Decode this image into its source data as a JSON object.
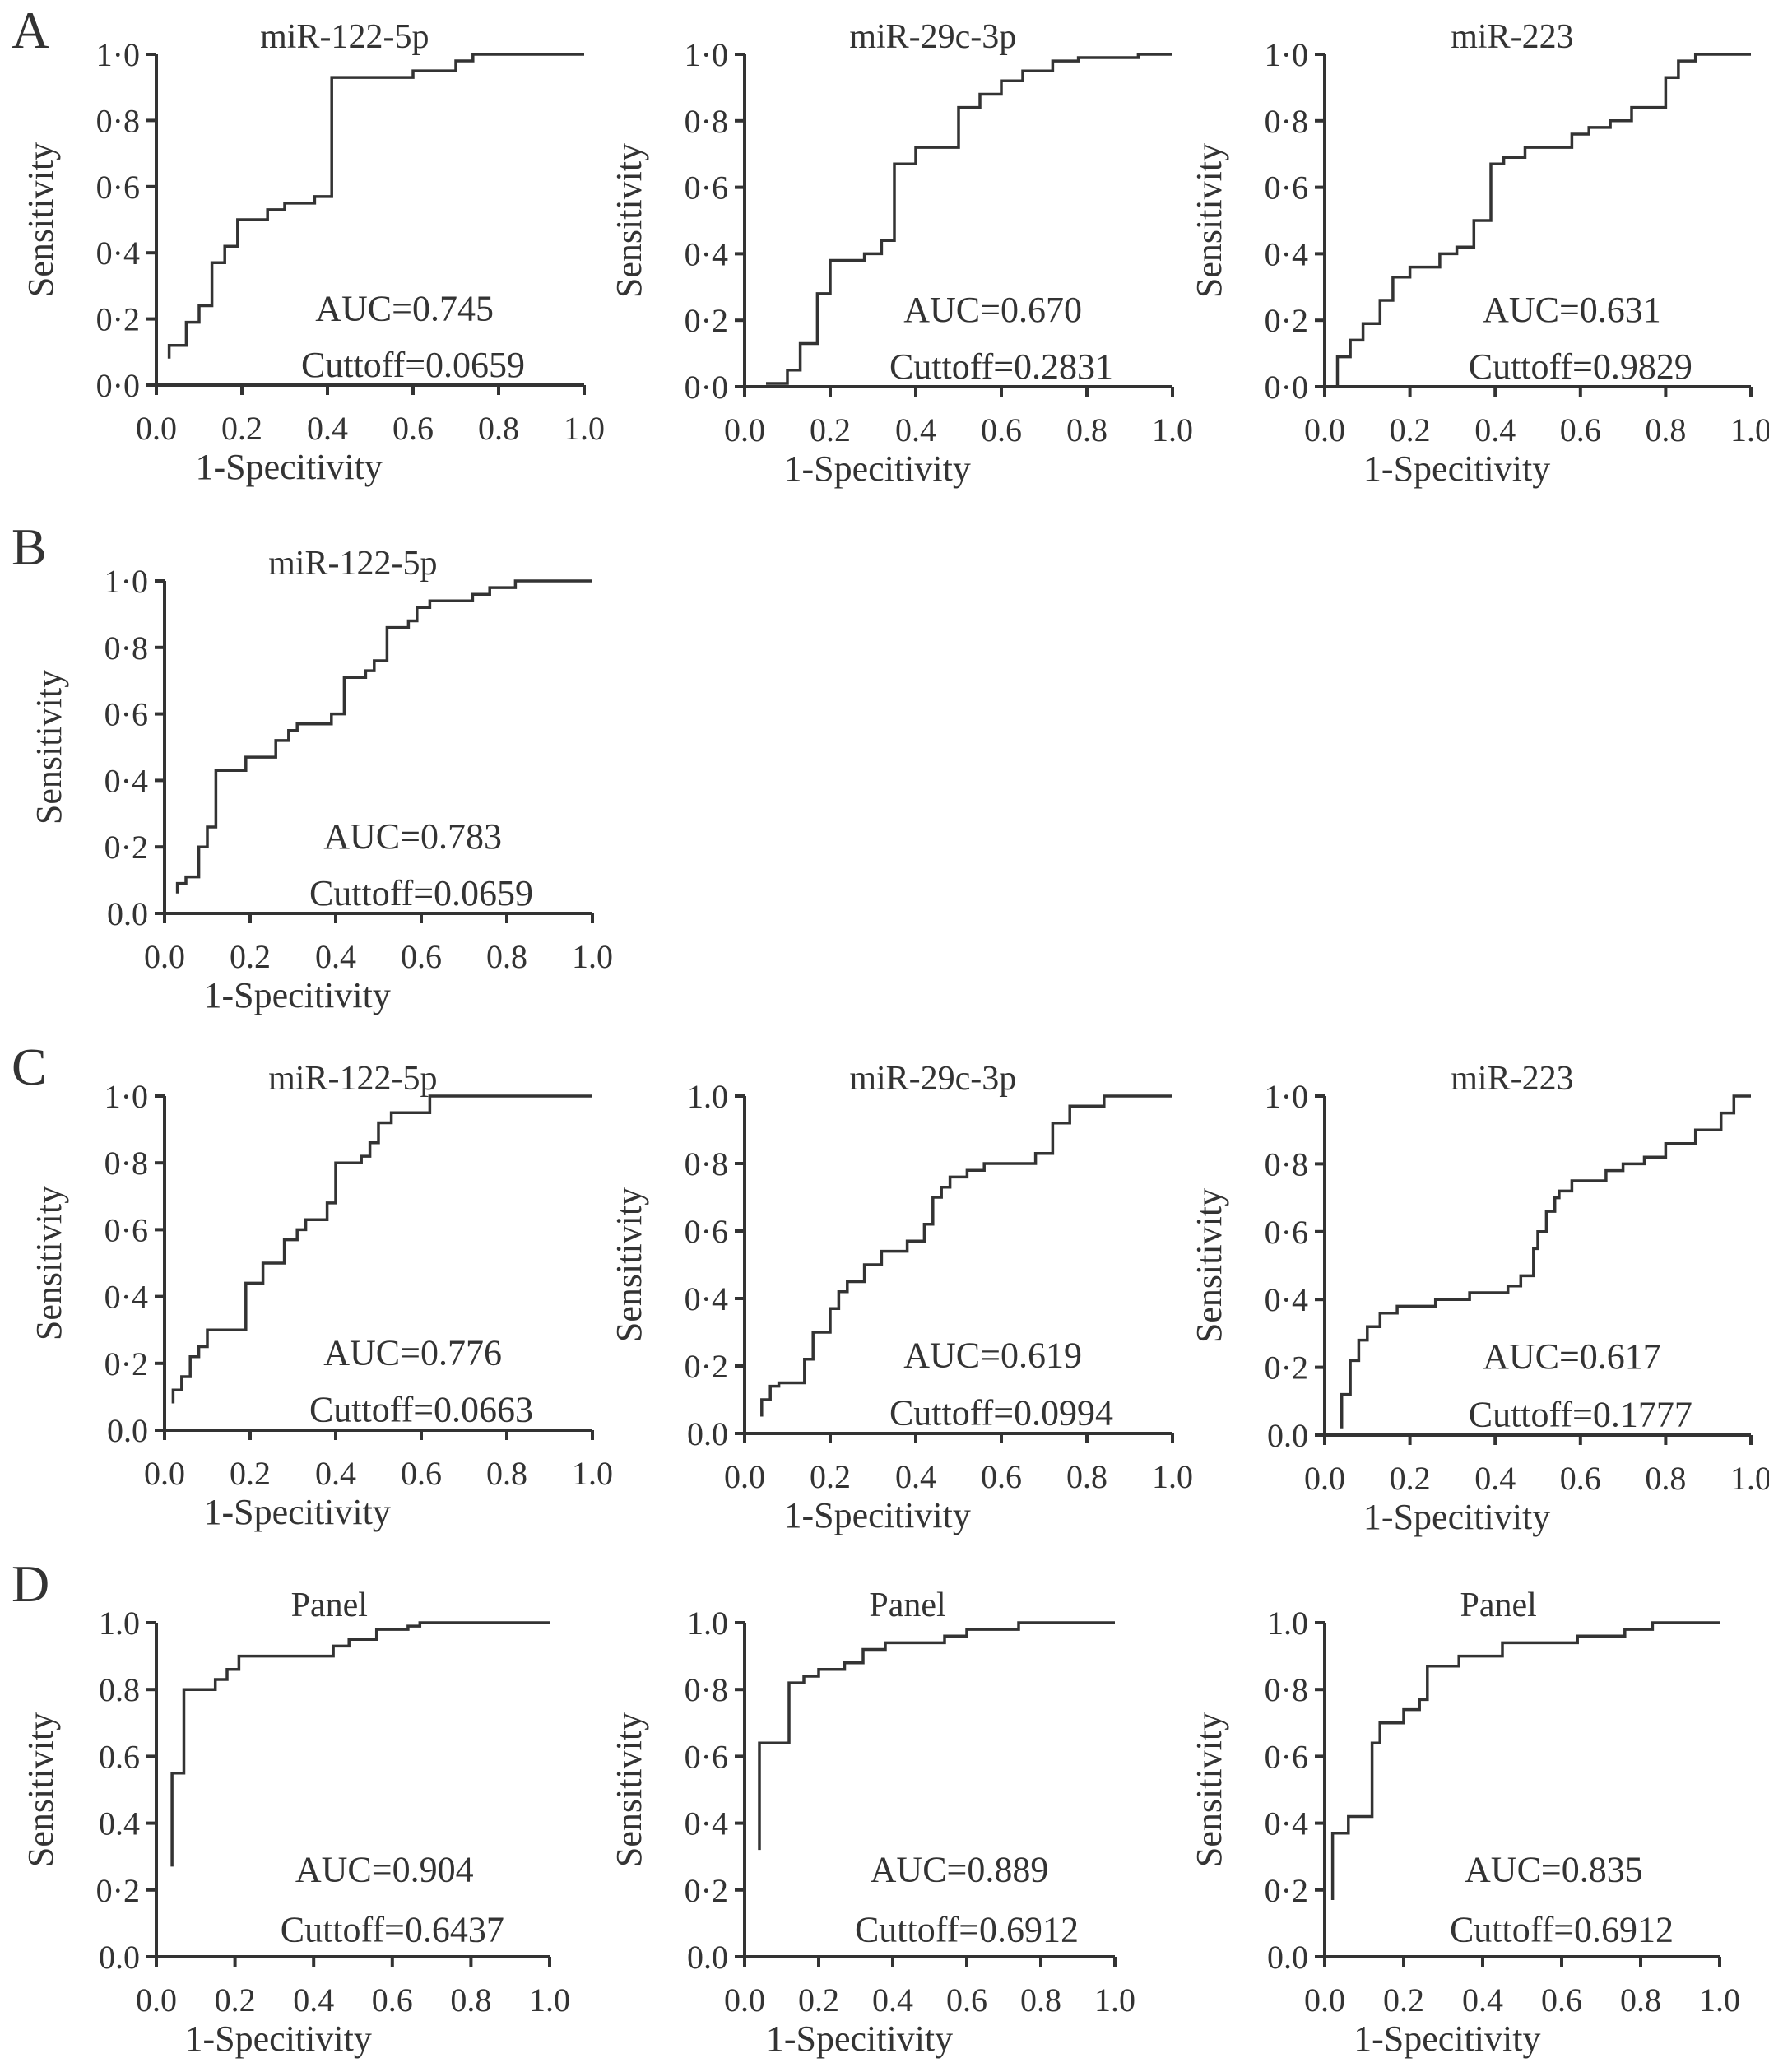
{
  "panel_letters": [
    "A",
    "B",
    "C",
    "D"
  ],
  "chart_data": [
    {
      "type": "line",
      "panel": "A",
      "title": "miR-122-5p",
      "xlabel": "1-Specitivity",
      "ylabel": "Sensitivity",
      "xlim": [
        0,
        1
      ],
      "ylim": [
        0,
        1
      ],
      "x_ticks": [
        "0.0",
        "0.2",
        "0.4",
        "0.6",
        "0.8",
        "1.0"
      ],
      "y_ticks": [
        "0·0",
        "0·2",
        "0·4",
        "0·6",
        "0·8",
        "1·0"
      ],
      "annotations": [
        "AUC=0.745",
        "Cuttoff=0.0659"
      ],
      "series": [
        {
          "x": [
            0.03,
            0.03,
            0.07,
            0.07,
            0.1,
            0.1,
            0.13,
            0.13,
            0.16,
            0.16,
            0.19,
            0.19,
            0.26,
            0.26,
            0.3,
            0.3,
            0.37,
            0.37,
            0.41,
            0.41,
            0.6,
            0.6,
            0.7,
            0.7,
            0.74,
            0.74,
            1.0
          ],
          "y": [
            0.08,
            0.12,
            0.12,
            0.19,
            0.19,
            0.24,
            0.24,
            0.37,
            0.37,
            0.42,
            0.42,
            0.5,
            0.5,
            0.53,
            0.53,
            0.55,
            0.55,
            0.57,
            0.57,
            0.93,
            0.93,
            0.95,
            0.95,
            0.98,
            0.98,
            1.0,
            1.0
          ]
        }
      ]
    },
    {
      "type": "line",
      "panel": "A",
      "title": "miR-29c-3p",
      "xlabel": "1-Specitivity",
      "ylabel": "Sensitivity",
      "xlim": [
        0,
        1
      ],
      "ylim": [
        0,
        1
      ],
      "x_ticks": [
        "0.0",
        "0.2",
        "0.4",
        "0.6",
        "0.8",
        "1.0"
      ],
      "y_ticks": [
        "0·0",
        "0·2",
        "0·4",
        "0·6",
        "0·8",
        "1·0"
      ],
      "annotations": [
        "AUC=0.670",
        "Cuttoff=0.2831"
      ],
      "series": [
        {
          "x": [
            0.05,
            0.1,
            0.1,
            0.13,
            0.13,
            0.17,
            0.17,
            0.2,
            0.2,
            0.28,
            0.28,
            0.32,
            0.32,
            0.35,
            0.35,
            0.4,
            0.4,
            0.5,
            0.5,
            0.55,
            0.55,
            0.6,
            0.6,
            0.65,
            0.65,
            0.72,
            0.72,
            0.78,
            0.78,
            0.92,
            0.92,
            1.0
          ],
          "y": [
            0.01,
            0.01,
            0.05,
            0.05,
            0.13,
            0.13,
            0.28,
            0.28,
            0.38,
            0.38,
            0.4,
            0.4,
            0.44,
            0.44,
            0.67,
            0.67,
            0.72,
            0.72,
            0.84,
            0.84,
            0.88,
            0.88,
            0.92,
            0.92,
            0.95,
            0.95,
            0.98,
            0.98,
            0.99,
            0.99,
            1.0,
            1.0
          ]
        }
      ]
    },
    {
      "type": "line",
      "panel": "A",
      "title": "miR-223",
      "xlabel": "1-Specitivity",
      "ylabel": "Sensitivity",
      "xlim": [
        0,
        1
      ],
      "ylim": [
        0,
        1
      ],
      "x_ticks": [
        "0.0",
        "0.2",
        "0.4",
        "0.6",
        "0.8",
        "1.0"
      ],
      "y_ticks": [
        "0·0",
        "0·2",
        "0·4",
        "0·6",
        "0·8",
        "1·0"
      ],
      "annotations": [
        "AUC=0.631",
        "Cuttoff=0.9829"
      ],
      "series": [
        {
          "x": [
            0.03,
            0.03,
            0.06,
            0.06,
            0.09,
            0.09,
            0.13,
            0.13,
            0.16,
            0.16,
            0.2,
            0.2,
            0.27,
            0.27,
            0.31,
            0.31,
            0.35,
            0.35,
            0.39,
            0.39,
            0.42,
            0.42,
            0.47,
            0.47,
            0.58,
            0.58,
            0.62,
            0.62,
            0.67,
            0.67,
            0.72,
            0.72,
            0.8,
            0.8,
            0.83,
            0.83,
            0.87,
            0.87,
            1.0
          ],
          "y": [
            0.0,
            0.09,
            0.09,
            0.14,
            0.14,
            0.19,
            0.19,
            0.26,
            0.26,
            0.33,
            0.33,
            0.36,
            0.36,
            0.4,
            0.4,
            0.42,
            0.42,
            0.5,
            0.5,
            0.67,
            0.67,
            0.69,
            0.69,
            0.72,
            0.72,
            0.76,
            0.76,
            0.78,
            0.78,
            0.8,
            0.8,
            0.84,
            0.84,
            0.93,
            0.93,
            0.98,
            0.98,
            1.0,
            1.0
          ]
        }
      ]
    },
    {
      "type": "line",
      "panel": "B",
      "title": "miR-122-5p",
      "xlabel": "1-Specitivity",
      "ylabel": "Sensitivity",
      "xlim": [
        0,
        1
      ],
      "ylim": [
        0,
        1
      ],
      "x_ticks": [
        "0.0",
        "0.2",
        "0.4",
        "0.6",
        "0.8",
        "1.0"
      ],
      "y_ticks": [
        "0.0",
        "0·2",
        "0·4",
        "0·6",
        "0·8",
        "1·0"
      ],
      "annotations": [
        "AUC=0.783",
        "Cuttoff=0.0659"
      ],
      "series": [
        {
          "x": [
            0.03,
            0.03,
            0.05,
            0.05,
            0.08,
            0.08,
            0.1,
            0.1,
            0.12,
            0.12,
            0.14,
            0.14,
            0.19,
            0.19,
            0.26,
            0.26,
            0.29,
            0.29,
            0.31,
            0.31,
            0.39,
            0.39,
            0.42,
            0.42,
            0.47,
            0.47,
            0.49,
            0.49,
            0.52,
            0.52,
            0.57,
            0.57,
            0.59,
            0.59,
            0.62,
            0.62,
            0.72,
            0.72,
            0.76,
            0.76,
            0.82,
            0.82,
            1.0
          ],
          "y": [
            0.06,
            0.09,
            0.09,
            0.11,
            0.11,
            0.2,
            0.2,
            0.26,
            0.26,
            0.43,
            0.43,
            0.43,
            0.43,
            0.47,
            0.47,
            0.52,
            0.52,
            0.55,
            0.55,
            0.57,
            0.57,
            0.6,
            0.6,
            0.71,
            0.71,
            0.73,
            0.73,
            0.76,
            0.76,
            0.86,
            0.86,
            0.88,
            0.88,
            0.92,
            0.92,
            0.94,
            0.94,
            0.96,
            0.96,
            0.98,
            0.98,
            1.0,
            1.0
          ]
        }
      ]
    },
    {
      "type": "line",
      "panel": "C",
      "title": "miR-122-5p",
      "xlabel": "1-Specitivity",
      "ylabel": "Sensitivity",
      "xlim": [
        0,
        1
      ],
      "ylim": [
        0,
        1
      ],
      "x_ticks": [
        "0.0",
        "0.2",
        "0.4",
        "0.6",
        "0.8",
        "1.0"
      ],
      "y_ticks": [
        "0.0",
        "0·2",
        "0·4",
        "0·6",
        "0·8",
        "1·0"
      ],
      "annotations": [
        "AUC=0.776",
        "Cuttoff=0.0663"
      ],
      "series": [
        {
          "x": [
            0.02,
            0.02,
            0.04,
            0.04,
            0.06,
            0.06,
            0.08,
            0.08,
            0.1,
            0.1,
            0.19,
            0.19,
            0.23,
            0.23,
            0.28,
            0.28,
            0.31,
            0.31,
            0.33,
            0.33,
            0.38,
            0.38,
            0.4,
            0.4,
            0.46,
            0.46,
            0.48,
            0.48,
            0.5,
            0.5,
            0.53,
            0.53,
            0.62,
            0.62,
            1.0
          ],
          "y": [
            0.08,
            0.12,
            0.12,
            0.16,
            0.16,
            0.22,
            0.22,
            0.25,
            0.25,
            0.3,
            0.3,
            0.44,
            0.44,
            0.5,
            0.5,
            0.57,
            0.57,
            0.6,
            0.6,
            0.63,
            0.63,
            0.68,
            0.68,
            0.8,
            0.8,
            0.82,
            0.82,
            0.86,
            0.86,
            0.92,
            0.92,
            0.95,
            0.95,
            1.0,
            1.0
          ]
        }
      ]
    },
    {
      "type": "line",
      "panel": "C",
      "title": "miR-29c-3p",
      "xlabel": "1-Specitivity",
      "ylabel": "Sensitivity",
      "xlim": [
        0,
        1
      ],
      "ylim": [
        0,
        1
      ],
      "x_ticks": [
        "0.0",
        "0.2",
        "0.4",
        "0.6",
        "0.8",
        "1.0"
      ],
      "y_ticks": [
        "0.0",
        "0·2",
        "0·4",
        "0·6",
        "0·8",
        "1.0"
      ],
      "annotations": [
        "AUC=0.619",
        "Cuttoff=0.0994"
      ],
      "series": [
        {
          "x": [
            0.04,
            0.04,
            0.06,
            0.06,
            0.08,
            0.08,
            0.14,
            0.14,
            0.16,
            0.16,
            0.2,
            0.2,
            0.22,
            0.22,
            0.24,
            0.24,
            0.28,
            0.28,
            0.32,
            0.32,
            0.38,
            0.38,
            0.42,
            0.42,
            0.44,
            0.44,
            0.46,
            0.46,
            0.48,
            0.48,
            0.52,
            0.52,
            0.56,
            0.56,
            0.68,
            0.68,
            0.72,
            0.72,
            0.76,
            0.76,
            0.84,
            0.84,
            0.95,
            0.95,
            1.0
          ],
          "y": [
            0.05,
            0.1,
            0.1,
            0.14,
            0.14,
            0.15,
            0.15,
            0.22,
            0.22,
            0.3,
            0.3,
            0.37,
            0.37,
            0.42,
            0.42,
            0.45,
            0.45,
            0.5,
            0.5,
            0.54,
            0.54,
            0.57,
            0.57,
            0.62,
            0.62,
            0.7,
            0.7,
            0.73,
            0.73,
            0.76,
            0.76,
            0.78,
            0.78,
            0.8,
            0.8,
            0.83,
            0.83,
            0.92,
            0.92,
            0.97,
            0.97,
            1.0,
            1.0,
            1.0,
            1.0
          ]
        }
      ]
    },
    {
      "type": "line",
      "panel": "C",
      "title": "miR-223",
      "xlabel": "1-Specitivity",
      "ylabel": "Sensitivity",
      "xlim": [
        0,
        1
      ],
      "ylim": [
        0,
        1
      ],
      "x_ticks": [
        "0.0",
        "0.2",
        "0.4",
        "0.6",
        "0.8",
        "1.0"
      ],
      "y_ticks": [
        "0.0",
        "0·2",
        "0·4",
        "0·6",
        "0·8",
        "1·0"
      ],
      "annotations": [
        "AUC=0.617",
        "Cuttoff=0.1777"
      ],
      "series": [
        {
          "x": [
            0.04,
            0.04,
            0.06,
            0.06,
            0.08,
            0.08,
            0.1,
            0.1,
            0.13,
            0.13,
            0.17,
            0.17,
            0.26,
            0.26,
            0.34,
            0.34,
            0.43,
            0.43,
            0.46,
            0.46,
            0.49,
            0.49,
            0.5,
            0.5,
            0.52,
            0.52,
            0.54,
            0.54,
            0.55,
            0.55,
            0.58,
            0.58,
            0.66,
            0.66,
            0.7,
            0.7,
            0.75,
            0.75,
            0.8,
            0.8,
            0.87,
            0.87,
            0.93,
            0.93,
            0.96,
            0.96,
            1.0
          ],
          "y": [
            0.02,
            0.12,
            0.12,
            0.22,
            0.22,
            0.28,
            0.28,
            0.32,
            0.32,
            0.36,
            0.36,
            0.38,
            0.38,
            0.4,
            0.4,
            0.42,
            0.42,
            0.44,
            0.44,
            0.47,
            0.47,
            0.55,
            0.55,
            0.6,
            0.6,
            0.66,
            0.66,
            0.7,
            0.7,
            0.72,
            0.72,
            0.75,
            0.75,
            0.78,
            0.78,
            0.8,
            0.8,
            0.82,
            0.82,
            0.86,
            0.86,
            0.9,
            0.9,
            0.95,
            0.95,
            1.0,
            1.0
          ]
        }
      ]
    },
    {
      "type": "line",
      "panel": "D",
      "title": "Panel",
      "xlabel": "1-Specitivity",
      "ylabel": "Sensitivity",
      "xlim": [
        0,
        1
      ],
      "ylim": [
        0,
        1
      ],
      "x_ticks": [
        "0.0",
        "0.2",
        "0.4",
        "0.6",
        "0.8",
        "1.0"
      ],
      "y_ticks": [
        "0.0",
        "0·2",
        "0.4",
        "0.6",
        "0.8",
        "1.0"
      ],
      "annotations": [
        "AUC=0.904",
        "Cuttoff=0.6437"
      ],
      "series": [
        {
          "x": [
            0.04,
            0.04,
            0.07,
            0.07,
            0.15,
            0.15,
            0.18,
            0.18,
            0.21,
            0.21,
            0.45,
            0.45,
            0.49,
            0.49,
            0.56,
            0.56,
            0.64,
            0.64,
            0.67,
            0.67,
            1.0
          ],
          "y": [
            0.27,
            0.55,
            0.55,
            0.8,
            0.8,
            0.83,
            0.83,
            0.86,
            0.86,
            0.9,
            0.9,
            0.93,
            0.93,
            0.95,
            0.95,
            0.98,
            0.98,
            0.99,
            0.99,
            1.0,
            1.0
          ]
        }
      ]
    },
    {
      "type": "line",
      "panel": "D",
      "title": "Panel",
      "xlabel": "1-Specitivity",
      "ylabel": "Sensitivity",
      "xlim": [
        0,
        1
      ],
      "ylim": [
        0,
        1
      ],
      "x_ticks": [
        "0.0",
        "0.2",
        "0.4",
        "0.6",
        "0.8",
        "1.0"
      ],
      "y_ticks": [
        "0.0",
        "0·2",
        "0·4",
        "0·6",
        "0·8",
        "1.0"
      ],
      "annotations": [
        "AUC=0.889",
        "Cuttoff=0.6912"
      ],
      "series": [
        {
          "x": [
            0.04,
            0.04,
            0.12,
            0.12,
            0.16,
            0.16,
            0.2,
            0.2,
            0.27,
            0.27,
            0.32,
            0.32,
            0.38,
            0.38,
            0.54,
            0.54,
            0.6,
            0.6,
            0.74,
            0.74,
            1.0
          ],
          "y": [
            0.32,
            0.64,
            0.64,
            0.82,
            0.82,
            0.84,
            0.84,
            0.86,
            0.86,
            0.88,
            0.88,
            0.92,
            0.92,
            0.94,
            0.94,
            0.96,
            0.96,
            0.98,
            0.98,
            1.0,
            1.0
          ]
        }
      ]
    },
    {
      "type": "line",
      "panel": "D",
      "title": "Panel",
      "xlabel": "1-Specitivity",
      "ylabel": "Sensitivity",
      "xlim": [
        0,
        1
      ],
      "ylim": [
        0,
        1
      ],
      "x_ticks": [
        "0.0",
        "0.2",
        "0.4",
        "0.6",
        "0.8",
        "1.0"
      ],
      "y_ticks": [
        "0.0",
        "0·2",
        "0·4",
        "0·6",
        "0·8",
        "1.0"
      ],
      "annotations": [
        "AUC=0.835",
        "Cuttoff=0.6912"
      ],
      "series": [
        {
          "x": [
            0.02,
            0.02,
            0.06,
            0.06,
            0.12,
            0.12,
            0.14,
            0.14,
            0.2,
            0.2,
            0.24,
            0.24,
            0.26,
            0.26,
            0.34,
            0.34,
            0.45,
            0.45,
            0.64,
            0.64,
            0.76,
            0.76,
            0.83,
            0.83,
            1.0
          ],
          "y": [
            0.17,
            0.37,
            0.37,
            0.42,
            0.42,
            0.64,
            0.64,
            0.7,
            0.7,
            0.74,
            0.74,
            0.77,
            0.77,
            0.87,
            0.87,
            0.9,
            0.9,
            0.94,
            0.94,
            0.96,
            0.96,
            0.98,
            0.98,
            1.0,
            1.0
          ]
        }
      ]
    }
  ]
}
